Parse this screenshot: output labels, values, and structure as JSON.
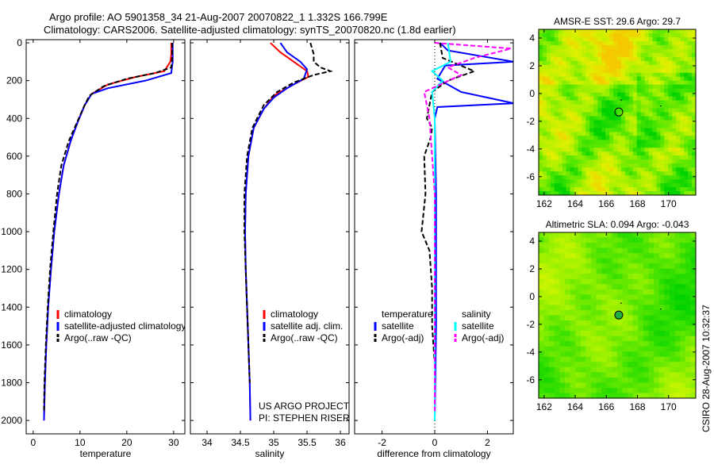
{
  "title": {
    "line1": "Argo profile: AO 5901358_34 21-Aug-2007 20070822_1 1.332S 166.799E",
    "line2": "Climatology: CARS2006. Satellite-adjusted climatology: synTS_20070820.nc (1.8d earlier)"
  },
  "credit": {
    "line1": "US ARGO PROJECT",
    "line2": "PI: STEPHEN RISER"
  },
  "timestamp": "CSIRO 28-Aug-2007 10:32:37",
  "colors": {
    "clim": "#ff0000",
    "sat": "#0000ff",
    "argo": "#000000",
    "sal_sat": "#00ffff",
    "sal_argo": "#ff00ff"
  },
  "chart_data": [
    {
      "type": "line",
      "xlabel": "temperature",
      "ylabel": "",
      "xlim": [
        -1.5,
        32.4
      ],
      "ylim": [
        -17,
        2071
      ],
      "xticks": [
        0,
        10,
        20,
        30
      ],
      "yticks": [
        0,
        200,
        400,
        600,
        800,
        1000,
        1200,
        1400,
        1600,
        1800,
        2000
      ],
      "legend": [
        "climatology",
        "satellite-adjusted climatology",
        "Argo(..raw -QC)"
      ],
      "series": [
        {
          "name": "climatology",
          "color": "#ff0000",
          "dash": false,
          "points": [
            [
              29.5,
              0
            ],
            [
              29.5,
              60
            ],
            [
              29.3,
              100
            ],
            [
              28,
              150
            ],
            [
              22,
              180
            ],
            [
              16,
              220
            ],
            [
              12.5,
              270
            ],
            [
              11,
              330
            ],
            [
              9.5,
              420
            ],
            [
              8,
              520
            ],
            [
              6.5,
              650
            ],
            [
              5.5,
              800
            ],
            [
              4.5,
              1000
            ],
            [
              3.8,
              1200
            ],
            [
              3.2,
              1400
            ],
            [
              2.8,
              1600
            ],
            [
              2.5,
              1800
            ],
            [
              2.3,
              2000
            ]
          ]
        },
        {
          "name": "satellite-adjusted climatology",
          "color": "#0000ff",
          "dash": false,
          "points": [
            [
              29.8,
              0
            ],
            [
              29.8,
              100
            ],
            [
              29.5,
              160
            ],
            [
              24,
              200
            ],
            [
              16,
              240
            ],
            [
              12.5,
              270
            ],
            [
              11,
              330
            ],
            [
              9.5,
              420
            ],
            [
              8,
              520
            ],
            [
              6.5,
              650
            ],
            [
              5.5,
              800
            ],
            [
              4.5,
              1000
            ],
            [
              3.8,
              1200
            ],
            [
              3.2,
              1400
            ],
            [
              2.8,
              1600
            ],
            [
              2.5,
              1800
            ],
            [
              2.3,
              2000
            ]
          ]
        },
        {
          "name": "Argo(..raw -QC)",
          "color": "#000000",
          "dash": true,
          "points": [
            [
              29.7,
              0
            ],
            [
              29.7,
              80
            ],
            [
              29.5,
              130
            ],
            [
              26,
              160
            ],
            [
              20,
              190
            ],
            [
              15,
              230
            ],
            [
              12,
              280
            ],
            [
              10.8,
              340
            ],
            [
              9.2,
              430
            ],
            [
              7.6,
              520
            ],
            [
              6,
              650
            ],
            [
              5.1,
              800
            ],
            [
              4.3,
              1000
            ],
            [
              3.6,
              1200
            ],
            [
              3.1,
              1400
            ],
            [
              2.7,
              1600
            ],
            [
              2.4,
              1800
            ],
            [
              2.3,
              1950
            ]
          ]
        }
      ]
    },
    {
      "type": "line",
      "xlabel": "salinity",
      "xlim": [
        33.75,
        36.13
      ],
      "ylim": [
        -17,
        2071
      ],
      "xticks": [
        34,
        34.5,
        35,
        35.5,
        36
      ],
      "legend": [
        "climatology",
        "satellite adj. clim.",
        "Argo(..raw -QC)"
      ],
      "series": [
        {
          "name": "climatology",
          "color": "#ff0000",
          "dash": false,
          "points": [
            [
              34.95,
              0
            ],
            [
              35.1,
              50
            ],
            [
              35.3,
              100
            ],
            [
              35.5,
              150
            ],
            [
              35.52,
              180
            ],
            [
              35.3,
              220
            ],
            [
              35.0,
              280
            ],
            [
              34.85,
              350
            ],
            [
              34.7,
              450
            ],
            [
              34.62,
              600
            ],
            [
              34.58,
              800
            ],
            [
              34.57,
              1000
            ],
            [
              34.58,
              1200
            ],
            [
              34.6,
              1400
            ],
            [
              34.62,
              1600
            ],
            [
              34.64,
              1800
            ],
            [
              34.65,
              2000
            ]
          ]
        },
        {
          "name": "satellite adj. clim.",
          "color": "#0000ff",
          "dash": false,
          "points": [
            [
              35.1,
              0
            ],
            [
              35.2,
              50
            ],
            [
              35.4,
              100
            ],
            [
              35.5,
              140
            ],
            [
              35.45,
              190
            ],
            [
              35.2,
              240
            ],
            [
              35.0,
              290
            ],
            [
              34.85,
              350
            ],
            [
              34.7,
              450
            ],
            [
              34.62,
              600
            ],
            [
              34.58,
              800
            ],
            [
              34.57,
              1000
            ],
            [
              34.58,
              1200
            ],
            [
              34.6,
              1400
            ],
            [
              34.62,
              1600
            ],
            [
              34.64,
              1800
            ],
            [
              34.65,
              2000
            ]
          ]
        },
        {
          "name": "Argo(..raw -QC)",
          "color": "#000000",
          "dash": true,
          "points": [
            [
              35.55,
              0
            ],
            [
              35.6,
              60
            ],
            [
              35.6,
              100
            ],
            [
              35.7,
              130
            ],
            [
              35.85,
              150
            ],
            [
              35.6,
              170
            ],
            [
              35.3,
              210
            ],
            [
              35.05,
              260
            ],
            [
              34.85,
              330
            ],
            [
              34.68,
              450
            ],
            [
              34.6,
              600
            ],
            [
              34.56,
              800
            ],
            [
              34.56,
              1000
            ],
            [
              34.58,
              1200
            ],
            [
              34.6,
              1400
            ],
            [
              34.62,
              1600
            ],
            [
              34.64,
              1800
            ]
          ]
        }
      ]
    },
    {
      "type": "line",
      "xlabel": "difference from climatology",
      "xlim": [
        -3.04,
        2.98
      ],
      "ylim": [
        -17,
        2071
      ],
      "xticks": [
        -2,
        0,
        2
      ],
      "legend_headers": [
        "temperature",
        "salinity"
      ],
      "legend": [
        "satellite",
        "Argo(-adj)",
        "satellite",
        "Argo(-adj)"
      ],
      "series": [
        {
          "name": "temperature satellite",
          "color": "#0000ff",
          "dash": false,
          "points": [
            [
              0.2,
              0
            ],
            [
              0.5,
              40
            ],
            [
              3,
              100
            ],
            [
              0.4,
              120
            ],
            [
              0.1,
              190
            ],
            [
              1,
              260
            ],
            [
              3,
              320
            ],
            [
              0.1,
              340
            ],
            [
              0,
              400
            ],
            [
              0.05,
              800
            ],
            [
              0.05,
              1500
            ],
            [
              0,
              2000
            ]
          ]
        },
        {
          "name": "temperature Argo(-adj)",
          "color": "#000000",
          "dash": true,
          "points": [
            [
              0.2,
              0
            ],
            [
              0.3,
              80
            ],
            [
              1.5,
              150
            ],
            [
              0.5,
              200
            ],
            [
              -0.1,
              260
            ],
            [
              -0.3,
              400
            ],
            [
              -0.1,
              450
            ],
            [
              -0.15,
              500
            ],
            [
              -0.4,
              600
            ],
            [
              -0.35,
              800
            ],
            [
              -0.5,
              1000
            ],
            [
              -0.2,
              1100
            ],
            [
              -0.1,
              1300
            ],
            [
              -0.1,
              1500
            ],
            [
              0,
              1700
            ],
            [
              0,
              1950
            ]
          ]
        },
        {
          "name": "salinity satellite",
          "color": "#00ffff",
          "dash": false,
          "points": [
            [
              0.5,
              0
            ],
            [
              0.6,
              100
            ],
            [
              -0.1,
              150
            ],
            [
              0.3,
              200
            ],
            [
              -0.1,
              260
            ],
            [
              0,
              400
            ],
            [
              0,
              1000
            ],
            [
              0,
              2000
            ]
          ]
        },
        {
          "name": "salinity Argo(-adj)",
          "color": "#ff00ff",
          "dash": true,
          "points": [
            [
              0,
              0
            ],
            [
              2.9,
              30
            ],
            [
              1.5,
              80
            ],
            [
              0.5,
              130
            ],
            [
              1.0,
              170
            ],
            [
              -0.4,
              260
            ],
            [
              -0.2,
              400
            ],
            [
              -0.1,
              600
            ],
            [
              0,
              800
            ],
            [
              0,
              1600
            ],
            [
              0,
              1950
            ]
          ]
        }
      ]
    },
    {
      "type": "heatmap",
      "title": "AMSR-E SST: 29.6 Argo: 29.7",
      "xlim": [
        161.65,
        171.75
      ],
      "ylim": [
        -7.33,
        4.63
      ],
      "xticks": [
        162,
        164,
        166,
        168,
        170
      ],
      "yticks": [
        4,
        2,
        0,
        -2,
        -4,
        -6
      ],
      "marker": [
        166.799,
        -1.332
      ]
    },
    {
      "type": "heatmap",
      "title": "Altimetric SLA: 0.094 Argo: -0.043",
      "xlim": [
        161.65,
        171.75
      ],
      "ylim": [
        -7.33,
        4.63
      ],
      "xticks": [
        162,
        164,
        166,
        168,
        170
      ],
      "yticks": [
        4,
        2,
        0,
        -2,
        -4,
        -6
      ],
      "marker": [
        166.799,
        -1.332
      ]
    }
  ]
}
